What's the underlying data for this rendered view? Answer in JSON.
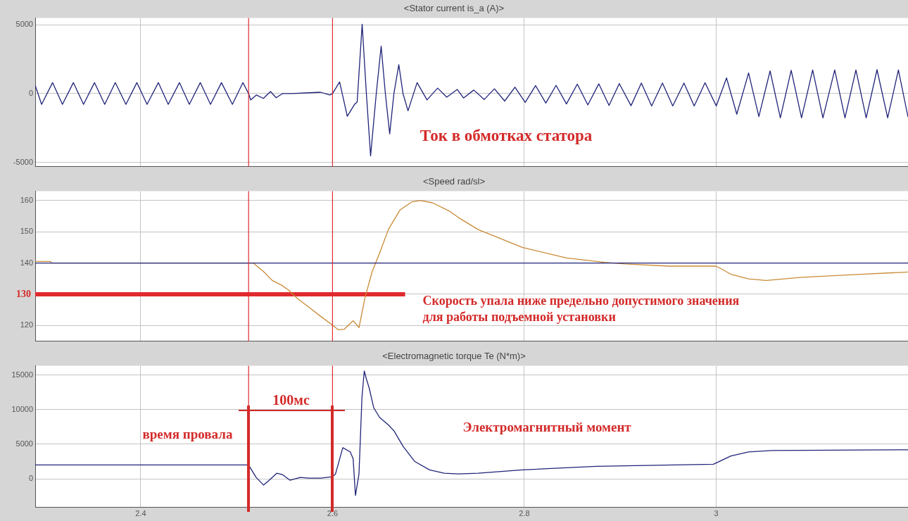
{
  "chart_data": [
    {
      "type": "line",
      "title": "<Stator current is_a (A)>",
      "xlim": [
        2.29,
        3.2
      ],
      "xticks": [
        2.4,
        2.6,
        2.8,
        3
      ],
      "ylim": [
        -5300,
        5500
      ],
      "yticks": [
        -5000,
        0,
        5000
      ],
      "grid": true,
      "tick_labels": "y",
      "series": [
        {
          "color": "#1f2378",
          "x": [
            2.29,
            2.2967,
            2.3081,
            2.3184,
            2.3298,
            2.3404,
            2.3518,
            2.3625,
            2.3735,
            2.3846,
            2.396,
            2.4066,
            2.4184,
            2.4287,
            2.4404,
            2.4507,
            2.4621,
            2.4728,
            2.4842,
            2.4956,
            2.5066,
            2.5125,
            2.5147,
            2.5206,
            2.5279,
            2.5353,
            2.5412,
            2.5478,
            2.5574,
            2.5721,
            2.5875,
            2.5971,
            2.6,
            2.6074,
            2.6154,
            2.6228,
            2.6257,
            2.6309,
            2.6353,
            2.6397,
            2.6456,
            2.6507,
            2.6551,
            2.6596,
            2.664,
            2.6691,
            2.6735,
            2.6787,
            2.6882,
            2.6985,
            2.7096,
            2.7191,
            2.7301,
            2.7366,
            2.7473,
            2.7581,
            2.7688,
            2.7795,
            2.7902,
            2.8009,
            2.8117,
            2.8224,
            2.8331,
            2.8439,
            2.8552,
            2.8662,
            2.8776,
            2.8883,
            2.899,
            2.9112,
            2.922,
            2.9327,
            2.944,
            2.9547,
            2.9664,
            2.9771,
            2.9884,
            3.0001,
            3.0108,
            3.0215,
            3.0338,
            3.0445,
            3.0562,
            3.0669,
            3.0782,
            3.089,
            3.1006,
            3.1113,
            3.1236,
            3.1343,
            3.1457,
            3.1564,
            3.1677,
            3.1788,
            3.19,
            3.2
          ],
          "values": [
            600,
            -780,
            800,
            -780,
            800,
            -780,
            800,
            -780,
            800,
            -780,
            800,
            -780,
            800,
            -780,
            800,
            -780,
            800,
            -780,
            800,
            -780,
            800,
            0,
            -460,
            -100,
            -350,
            150,
            -300,
            0,
            0,
            50,
            100,
            -100,
            0,
            850,
            -1650,
            -800,
            -600,
            5050,
            0,
            -4530,
            0,
            3450,
            0,
            -2930,
            0,
            2100,
            0,
            -1250,
            800,
            -460,
            400,
            -260,
            300,
            -320,
            260,
            -430,
            350,
            -540,
            470,
            -640,
            580,
            -690,
            600,
            -750,
            690,
            -820,
            710,
            -860,
            730,
            -880,
            770,
            -900,
            770,
            -900,
            770,
            -900,
            790,
            -900,
            1140,
            -1500,
            1500,
            -1670,
            1650,
            -1760,
            1700,
            -1760,
            1720,
            -1760,
            1720,
            -1760,
            1720,
            -1760,
            1740,
            -1760,
            1720,
            -1700
          ]
        }
      ],
      "ref_lines": [
        {
          "axis": "x",
          "value": 2.5125,
          "color": "#e02a2e"
        },
        {
          "axis": "x",
          "value": 2.6,
          "color": "#e02a2e"
        }
      ],
      "annotations": [
        "Ток в обмотках статора"
      ]
    },
    {
      "type": "line",
      "title": "<Speed rad/sl>",
      "xlim": [
        2.29,
        3.2
      ],
      "xticks": [
        2.4,
        2.6,
        2.8,
        3
      ],
      "ylim": [
        115,
        163
      ],
      "yticks": [
        120,
        {
          "value": 130,
          "label": null
        },
        140,
        150,
        160
      ],
      "grid": true,
      "tick_labels": "y",
      "series": [
        {
          "color": "#1f2378",
          "x": [
            2.29,
            3.2
          ],
          "values": [
            140,
            140
          ]
        },
        {
          "color": "#c98a35",
          "x": [
            2.29,
            2.306,
            2.307,
            2.5125,
            2.5173,
            2.5279,
            2.5372,
            2.5463,
            2.554,
            2.5632,
            2.5755,
            2.5877,
            2.6,
            2.6061,
            2.6123,
            2.6215,
            2.6276,
            2.6337,
            2.6414,
            2.649,
            2.6582,
            2.6704,
            2.6827,
            2.6919,
            2.7042,
            2.7226,
            2.7311,
            2.7519,
            2.7979,
            2.8438,
            2.8837,
            2.9051,
            2.9511,
            3.0001,
            3.0154,
            3.0338,
            3.0522,
            3.089,
            3.1502,
            3.2
          ],
          "values": [
            140.5,
            140.5,
            140,
            140,
            140,
            137.3,
            134.4,
            133,
            131.4,
            128.7,
            125.8,
            122.9,
            120.1,
            118.6,
            118.8,
            121.5,
            119.3,
            128.7,
            137.3,
            143.1,
            150.7,
            157,
            159.6,
            160,
            159.3,
            156.5,
            154.6,
            150.7,
            145,
            141.6,
            140.2,
            139.7,
            139,
            139,
            136.4,
            134.9,
            134.4,
            135.4,
            136.4,
            137.1
          ]
        },
        {
          "color": "#e02a2e",
          "x": [
            2.29,
            2.6757
          ],
          "values": [
            130,
            130
          ]
        }
      ],
      "ref_lines": [
        {
          "axis": "x",
          "value": 2.5125,
          "color": "#e02a2e"
        },
        {
          "axis": "x",
          "value": 2.6,
          "color": "#e02a2e"
        }
      ],
      "annotations": [
        "Скорость упала ниже предельно допустимого значения",
        "для работы подъемной установки",
        {
          "text": "130",
          "x": 2.29,
          "y": 130
        }
      ]
    },
    {
      "type": "line",
      "title": "<Electromagnetic torque Te (N*m)>",
      "xlim": [
        2.29,
        3.2
      ],
      "xticks": [
        2.4,
        2.6,
        2.8,
        3
      ],
      "ylim": [
        -4150,
        16350
      ],
      "yticks": [
        0,
        5000,
        10000,
        15000
      ],
      "grid": true,
      "series": [
        {
          "color": "#1f2378",
          "x": [
            2.29,
            2.5125,
            2.5142,
            2.5204,
            2.528,
            2.5341,
            2.5418,
            2.5479,
            2.5556,
            2.5663,
            2.5755,
            2.5877,
            2.6,
            2.6031,
            2.6107,
            2.6184,
            2.6215,
            2.6239,
            2.6276,
            2.6307,
            2.6331,
            2.6352,
            2.6383,
            2.6429,
            2.649,
            2.6582,
            2.6643,
            2.6735,
            2.6858,
            2.7011,
            2.7164,
            2.7311,
            2.7519,
            2.7979,
            2.8745,
            2.9971,
            3.0154,
            3.0338,
            3.0583,
            3.2
          ],
          "values": [
            2000,
            2000,
            1600,
            200,
            -900,
            -200,
            800,
            600,
            -200,
            200,
            100,
            100,
            300,
            700,
            4500,
            3900,
            2900,
            -2400,
            700,
            11800,
            15600,
            14500,
            13100,
            10300,
            8900,
            7800,
            6900,
            4700,
            2500,
            1300,
            800,
            700,
            800,
            1300,
            1800,
            2100,
            3300,
            3900,
            4100,
            4200
          ]
        }
      ],
      "ref_lines": [
        {
          "axis": "x",
          "value": 2.5125,
          "color": "#e02a2e"
        },
        {
          "axis": "x",
          "value": 2.6,
          "color": "#e02a2e"
        }
      ],
      "annotations": [
        "время провала",
        "100мс",
        "Электромагнитный момент"
      ]
    }
  ]
}
